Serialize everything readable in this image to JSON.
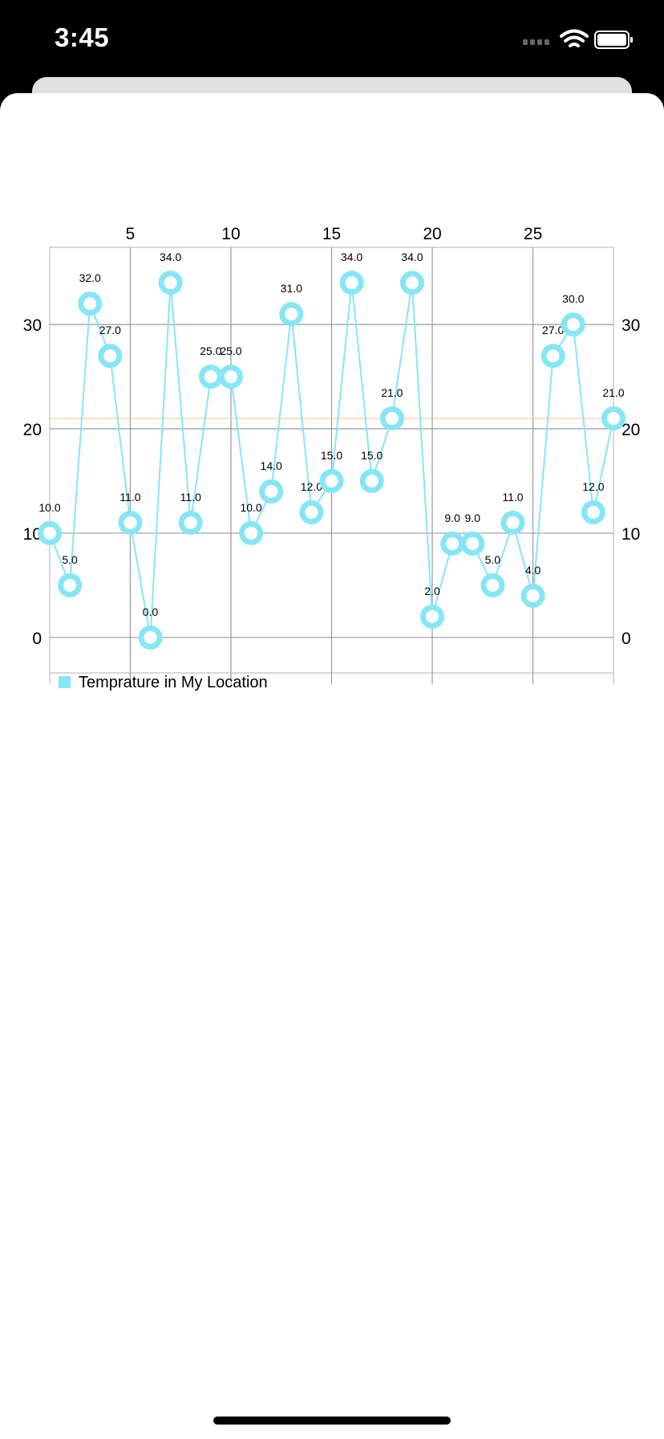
{
  "status_bar": {
    "time": "3:45",
    "icons": [
      "cellular-icon",
      "wifi-icon",
      "battery-icon"
    ]
  },
  "colors": {
    "series": "#86e6f6",
    "limit_line": "#f5c99a",
    "grid": "#9a9a9a",
    "label": "#000000"
  },
  "chart_data": {
    "type": "line",
    "title": "",
    "xlabel": "",
    "ylabel": "",
    "x": [
      1,
      2,
      3,
      4,
      5,
      6,
      7,
      8,
      9,
      10,
      11,
      12,
      13,
      14,
      15,
      16,
      17,
      18,
      19,
      20,
      21,
      22,
      23,
      24,
      25,
      26,
      27,
      28,
      29
    ],
    "series": [
      {
        "name": "Temprature in My Location",
        "values": [
          10,
          5,
          32,
          27,
          11,
          0,
          34,
          11,
          25,
          25,
          10,
          14,
          31,
          12,
          15,
          34,
          15,
          21,
          34,
          2,
          9,
          9,
          5,
          11,
          4,
          27,
          30,
          12,
          21
        ],
        "value_labels": [
          "10.0",
          "5.0",
          "32.0",
          "27.0",
          "11.0",
          "0.0",
          "34.0",
          "11.0",
          "25.0",
          "25.0",
          "10.0",
          "14.0",
          "31.0",
          "12.0",
          "15.0",
          "34.0",
          "15.0",
          "21.0",
          "34.0",
          "2.0",
          "9.0",
          "9.0",
          "5.0",
          "11.0",
          "4.0",
          "27.0",
          "30.0",
          "12.0",
          "21.0"
        ]
      }
    ],
    "x_ticks": [
      5,
      10,
      15,
      20,
      25
    ],
    "x_tick_labels": [
      "5",
      "10",
      "15",
      "20",
      "25"
    ],
    "y_ticks": [
      0,
      10,
      20,
      30
    ],
    "y_tick_labels": [
      "0",
      "10",
      "20",
      "30"
    ],
    "xlim": [
      1,
      29
    ],
    "ylim": [
      -3.4,
      37.4
    ],
    "limit_line_value": 21,
    "grid": true,
    "x_axis_position": "top",
    "y_axes": "left-and-right",
    "legend": {
      "position": "bottom-left",
      "entries": [
        "Temprature in My Location"
      ]
    }
  }
}
